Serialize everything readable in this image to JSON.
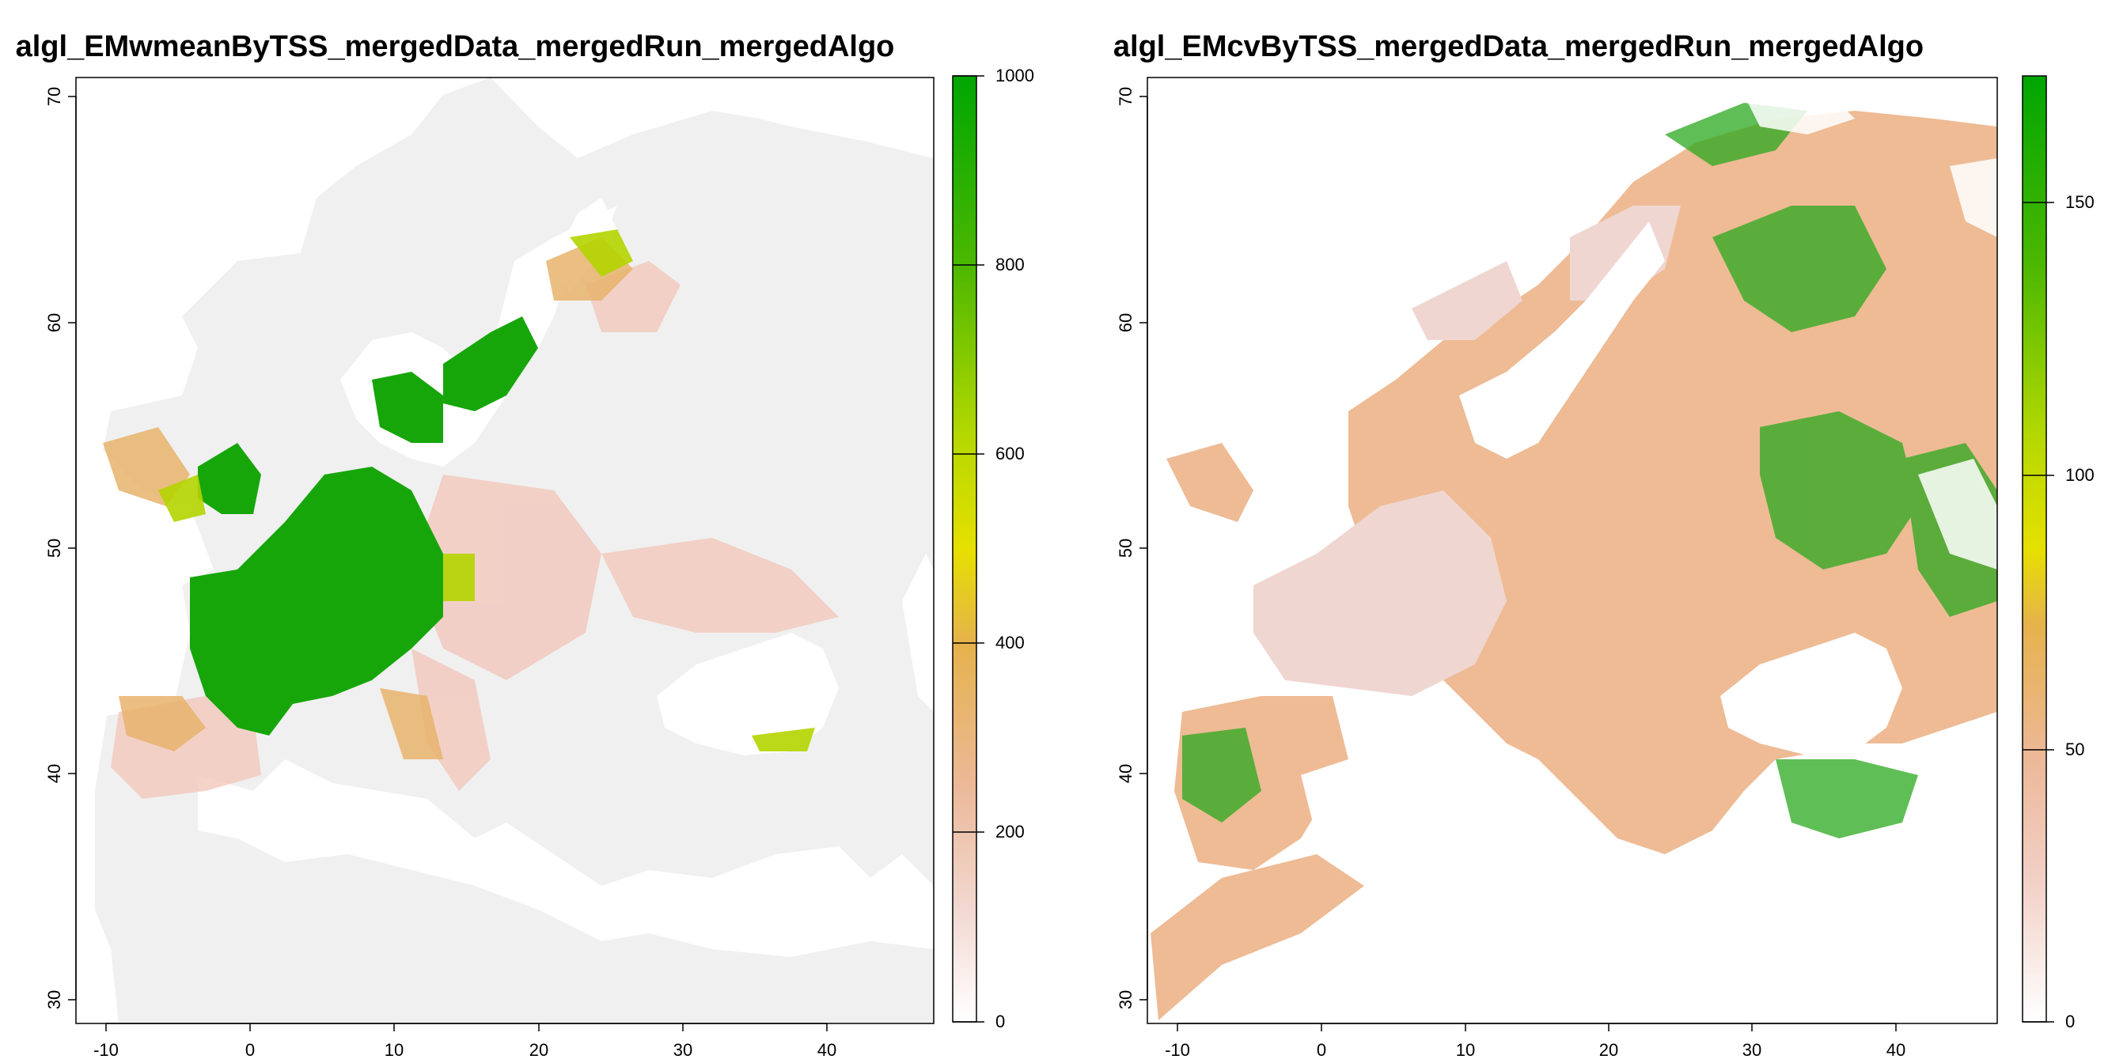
{
  "maps": [
    {
      "title": "algl_EMwmeanByTSS_mergedData_mergedRun_mergedAlgo",
      "x_ticks": [
        "-10",
        "0",
        "10",
        "20",
        "30",
        "40"
      ],
      "y_ticks": [
        "30",
        "40",
        "50",
        "60",
        "70"
      ],
      "legend_ticks": [
        "0",
        "200",
        "400",
        "600",
        "800",
        "1000"
      ],
      "legend_range": [
        0,
        1000
      ]
    },
    {
      "title": "algl_EMcvByTSS_mergedData_mergedRun_mergedAlgo",
      "x_ticks": [
        "-10",
        "0",
        "10",
        "20",
        "30",
        "40"
      ],
      "y_ticks": [
        "30",
        "40",
        "50",
        "60",
        "70"
      ],
      "legend_ticks": [
        "0",
        "50",
        "100",
        "150"
      ],
      "legend_range": [
        0,
        174
      ]
    }
  ],
  "colors": {
    "background_land_low": "#f0f0f0",
    "pink": "#f0c0b0",
    "tan": "#e8b070",
    "gold": "#d8b840",
    "yellow": "#e6e600",
    "lime": "#a0d000",
    "green": "#00a600",
    "water": "#ffffff"
  }
}
